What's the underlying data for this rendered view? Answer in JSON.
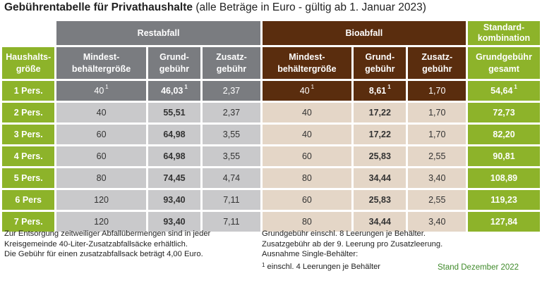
{
  "title": {
    "main": "Gebührentabelle für Privathaushalte",
    "sub": " (alle Beträge in Euro - gültig ab 1. Januar 2023)"
  },
  "headers": {
    "restabfall": "Restabfall",
    "bioabfall": "Bioabfall",
    "standard_line1": "Standard-",
    "standard_line2": "kombination",
    "haushalt_line1": "Haushalts-",
    "haushalt_line2": "größe",
    "mindest_line1": "Mindest-",
    "mindest_line2": "behältergröße",
    "grund_line1": "Grund-",
    "grund_line2": "gebühr",
    "zusatz_line1": "Zusatz-",
    "zusatz_line2": "gebühr",
    "std_grund_line1": "Grundgebühr",
    "std_grund_line2": "gesamt"
  },
  "rows": [
    {
      "hh": "1 Pers.",
      "r_min": "40",
      "r_min_sup": "1",
      "r_grund": "46,03",
      "r_grund_sup": "1",
      "r_zus": "2,37",
      "b_min": "40",
      "b_min_sup": "1",
      "b_grund": "8,61",
      "b_grund_sup": "1",
      "b_zus": "1,70",
      "std": "54,64",
      "std_sup": "1"
    },
    {
      "hh": "2 Pers.",
      "r_min": "40",
      "r_grund": "55,51",
      "r_zus": "2,37",
      "b_min": "40",
      "b_grund": "17,22",
      "b_zus": "1,70",
      "std": "72,73"
    },
    {
      "hh": "3 Pers.",
      "r_min": "60",
      "r_grund": "64,98",
      "r_zus": "3,55",
      "b_min": "40",
      "b_grund": "17,22",
      "b_zus": "1,70",
      "std": "82,20"
    },
    {
      "hh": "4 Pers.",
      "r_min": "60",
      "r_grund": "64,98",
      "r_zus": "3,55",
      "b_min": "60",
      "b_grund": "25,83",
      "b_zus": "2,55",
      "std": "90,81"
    },
    {
      "hh": "5 Pers.",
      "r_min": "80",
      "r_grund": "74,45",
      "r_zus": "4,74",
      "b_min": "80",
      "b_grund": "34,44",
      "b_zus": "3,40",
      "std": "108,89"
    },
    {
      "hh": "6 Pers",
      "r_min": "120",
      "r_grund": "93,40",
      "r_zus": "7,11",
      "b_min": "60",
      "b_grund": "25,83",
      "b_zus": "2,55",
      "std": "119,23"
    },
    {
      "hh": "7 Pers.",
      "r_min": "120",
      "r_grund": "93,40",
      "r_zus": "7,11",
      "b_min": "80",
      "b_grund": "34,44",
      "b_zus": "3,40",
      "std": "127,84"
    }
  ],
  "footnotes": {
    "left_line1": "Zur Entsorgung zeitweiliger Abfallübermengen sind in jeder",
    "left_line2": "Kreisgemeinde 40-Liter-Zusatzabfallsäcke erhältlich.",
    "left_line3": "Die Gebühr für einen zusatzabfallsack beträgt 4,00 Euro.",
    "right_line1": "Grundgebühr einschl. 8 Leerungen je Behälter.",
    "right_line2": "Zusatzgebühr ab der 9. Leerung pro Zusatzleerung.",
    "right_line3": "Ausnahme Single-Behälter:",
    "right_line4_sup": "1",
    "right_line4": " einschl. 4 Leerungen je Behälter",
    "stand": "Stand Dezember 2022"
  },
  "colors": {
    "green": "#8db32a",
    "grey_dark": "#7a7c80",
    "grey_light": "#c9c9cb",
    "brown_dark": "#5a2d0e",
    "brown_light": "#e4d6c7",
    "stand_text": "#3f8a2a"
  }
}
